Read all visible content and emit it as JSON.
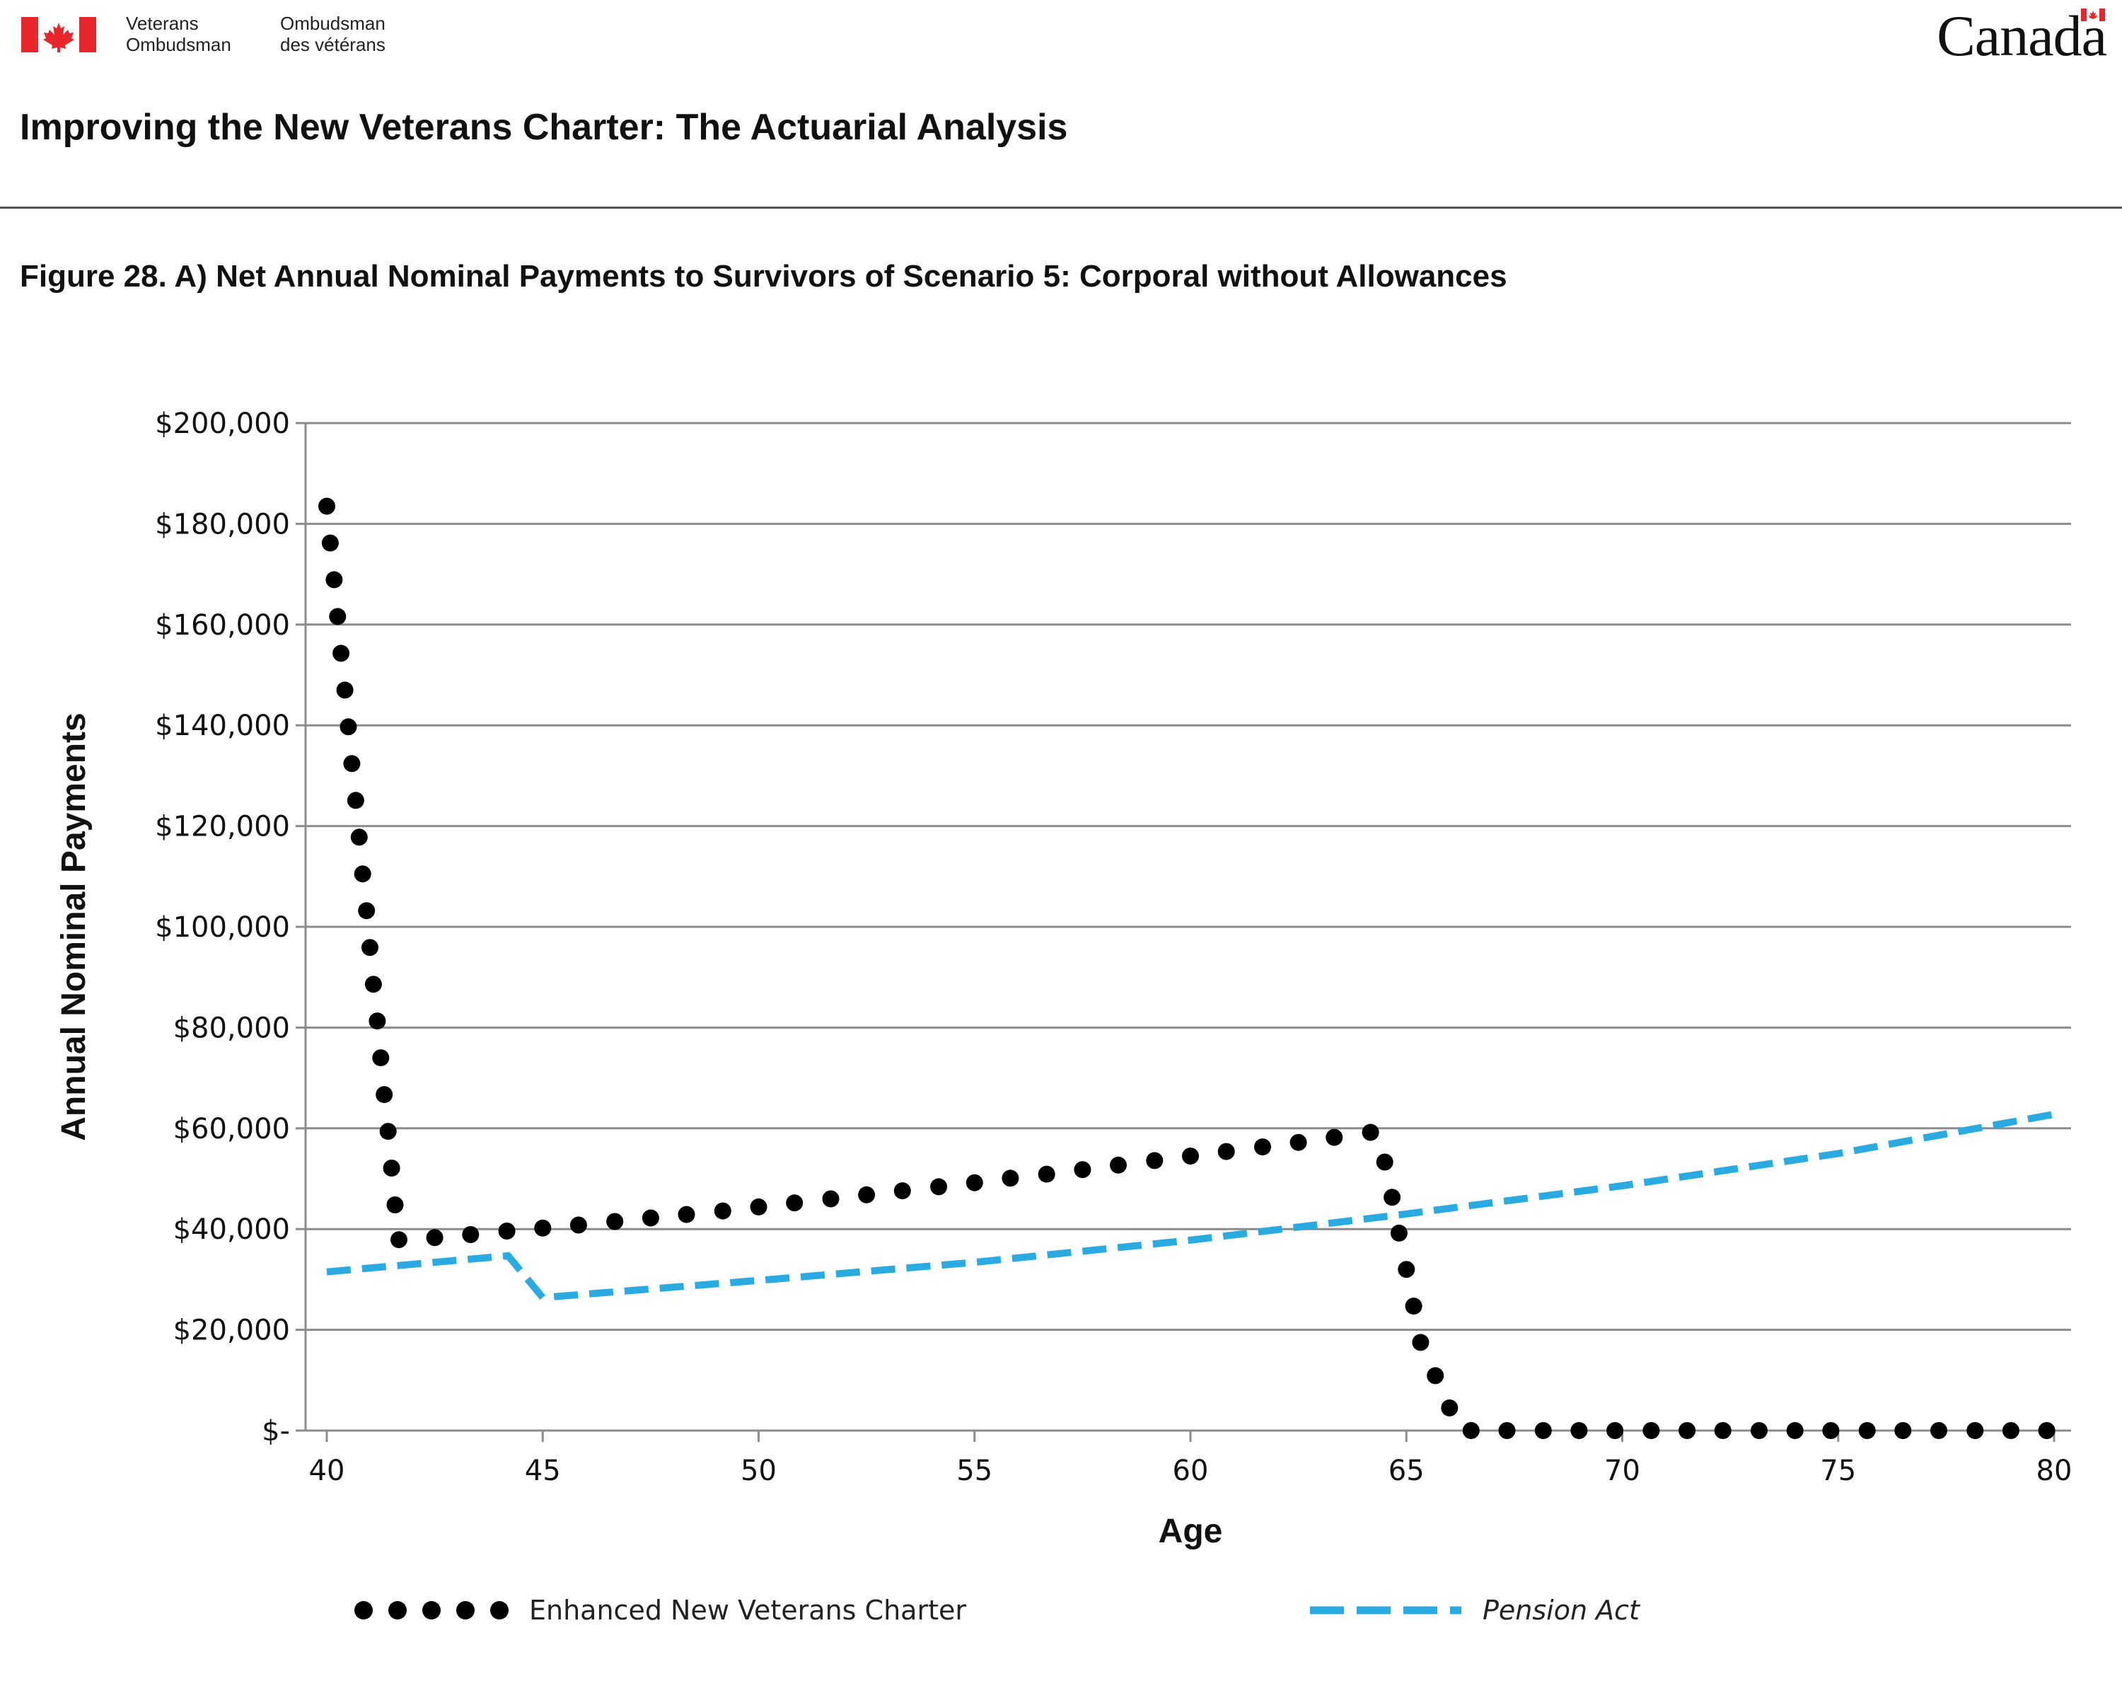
{
  "header": {
    "dept_en": "Veterans\nOmbudsman",
    "dept_fr": "Ombudsman\ndes vétérans",
    "wordmark": "Canada"
  },
  "document_title": "Improving the New Veterans Charter: The Actuarial Analysis",
  "figure_title": "Figure 28. A) Net Annual Nominal Payments to Survivors of Scenario 5: Corporal without Allowances",
  "colors": {
    "brand_red": "#e8262c",
    "series_nvc": "#000000",
    "series_pension": "#29abe2",
    "gridline": "#8c8c8c"
  },
  "chart_data": {
    "type": "line",
    "xlabel": "Age",
    "ylabel": "Annual Nominal Payments",
    "xlim": [
      39.5,
      80.5
    ],
    "ylim": [
      0,
      200000
    ],
    "x_ticks": [
      40,
      45,
      50,
      55,
      60,
      65,
      70,
      75,
      80
    ],
    "x_tick_labels": [
      "40",
      "45",
      "50",
      "55",
      "60",
      "65",
      "70",
      "75",
      "80"
    ],
    "y_ticks": [
      0,
      20000,
      40000,
      60000,
      80000,
      100000,
      120000,
      140000,
      160000,
      180000,
      200000
    ],
    "y_tick_labels": [
      "$-",
      "$20,000",
      "$40,000",
      "$60,000",
      "$80,000",
      "$100,000",
      "$120,000",
      "$140,000",
      "$160,000",
      "$180,000",
      "$200,000"
    ],
    "grid": true,
    "legend_position": "bottom",
    "series": [
      {
        "name": "Enhanced New Veterans Charter",
        "style": "dotted",
        "color": "#000000",
        "points": [
          [
            40.0,
            183500
          ],
          [
            40.08,
            176200
          ],
          [
            40.17,
            168900
          ],
          [
            40.25,
            161600
          ],
          [
            40.33,
            154300
          ],
          [
            40.42,
            147000
          ],
          [
            40.5,
            139700
          ],
          [
            40.58,
            132400
          ],
          [
            40.67,
            125100
          ],
          [
            40.75,
            117800
          ],
          [
            40.83,
            110500
          ],
          [
            40.92,
            103200
          ],
          [
            41.0,
            95900
          ],
          [
            41.08,
            88600
          ],
          [
            41.17,
            81300
          ],
          [
            41.25,
            74000
          ],
          [
            41.33,
            66700
          ],
          [
            41.42,
            59400
          ],
          [
            41.5,
            52100
          ],
          [
            41.58,
            44800
          ],
          [
            41.67,
            37900
          ],
          [
            42.5,
            38300
          ],
          [
            43.33,
            38900
          ],
          [
            44.17,
            39600
          ],
          [
            45.0,
            40200
          ],
          [
            45.83,
            40800
          ],
          [
            46.67,
            41500
          ],
          [
            47.5,
            42200
          ],
          [
            48.33,
            42900
          ],
          [
            49.17,
            43600
          ],
          [
            50.0,
            44400
          ],
          [
            50.83,
            45200
          ],
          [
            51.67,
            46000
          ],
          [
            52.5,
            46800
          ],
          [
            53.33,
            47600
          ],
          [
            54.17,
            48400
          ],
          [
            55.0,
            49200
          ],
          [
            55.83,
            50100
          ],
          [
            56.67,
            50900
          ],
          [
            57.5,
            51800
          ],
          [
            58.33,
            52700
          ],
          [
            59.17,
            53600
          ],
          [
            60.0,
            54500
          ],
          [
            60.83,
            55400
          ],
          [
            61.67,
            56300
          ],
          [
            62.5,
            57200
          ],
          [
            63.33,
            58200
          ],
          [
            64.17,
            59200
          ],
          [
            64.5,
            53300
          ],
          [
            64.67,
            46300
          ],
          [
            64.83,
            39200
          ],
          [
            65.0,
            32000
          ],
          [
            65.17,
            24700
          ],
          [
            65.33,
            17500
          ],
          [
            65.67,
            10900
          ],
          [
            66.0,
            4500
          ],
          [
            66.5,
            0
          ],
          [
            67.33,
            0
          ],
          [
            68.17,
            0
          ],
          [
            69.0,
            0
          ],
          [
            69.83,
            0
          ],
          [
            70.67,
            0
          ],
          [
            71.5,
            0
          ],
          [
            72.33,
            0
          ],
          [
            73.17,
            0
          ],
          [
            74.0,
            0
          ],
          [
            74.83,
            0
          ],
          [
            75.67,
            0
          ],
          [
            76.5,
            0
          ],
          [
            77.33,
            0
          ],
          [
            78.17,
            0
          ],
          [
            79.0,
            0
          ],
          [
            79.83,
            0
          ]
        ]
      },
      {
        "name": "Pension Act",
        "style": "dashed",
        "color": "#29abe2",
        "points": [
          [
            40.0,
            31500
          ],
          [
            44.2,
            34700
          ],
          [
            45.0,
            26400
          ],
          [
            50.0,
            29800
          ],
          [
            55.0,
            33400
          ],
          [
            60.0,
            37800
          ],
          [
            65.0,
            43000
          ],
          [
            70.0,
            48600
          ],
          [
            75.0,
            55000
          ],
          [
            80.0,
            62800
          ]
        ]
      }
    ]
  }
}
